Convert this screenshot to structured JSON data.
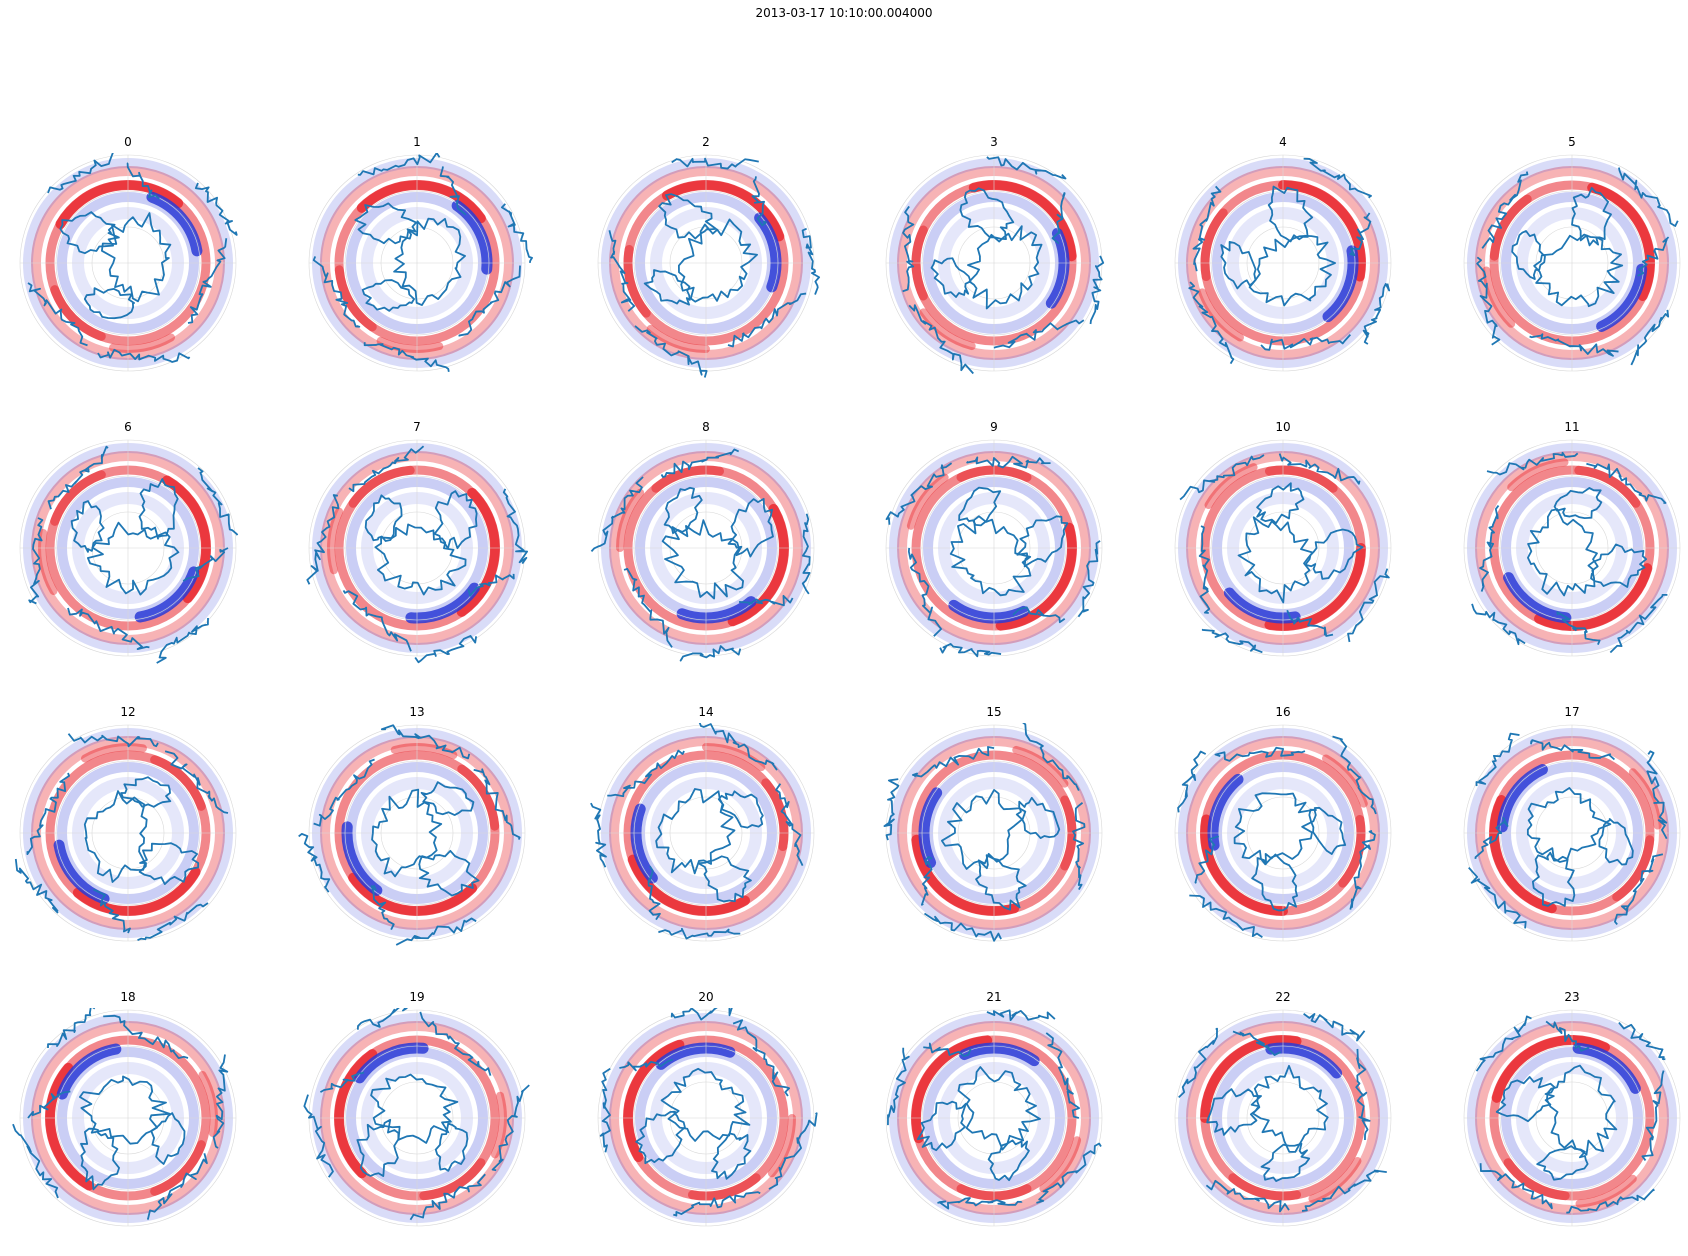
{
  "figure": {
    "suptitle": "2013-03-17 10:10:00.004000"
  },
  "chart_data": {
    "type": "heatmap",
    "projection": "north-polar stereographic",
    "grid": true,
    "panel_titles": [
      "0",
      "1",
      "2",
      "3",
      "4",
      "5",
      "6",
      "7",
      "8",
      "9",
      "10",
      "11",
      "12",
      "13",
      "14",
      "15",
      "16",
      "17",
      "18",
      "19",
      "20",
      "21",
      "22",
      "23"
    ],
    "colormap": [
      "#2b3bd6",
      "#ffffff",
      "#e8242b"
    ],
    "coastline_color": "#1f77b4",
    "colorbar": "none",
    "axis_labels": "none"
  }
}
